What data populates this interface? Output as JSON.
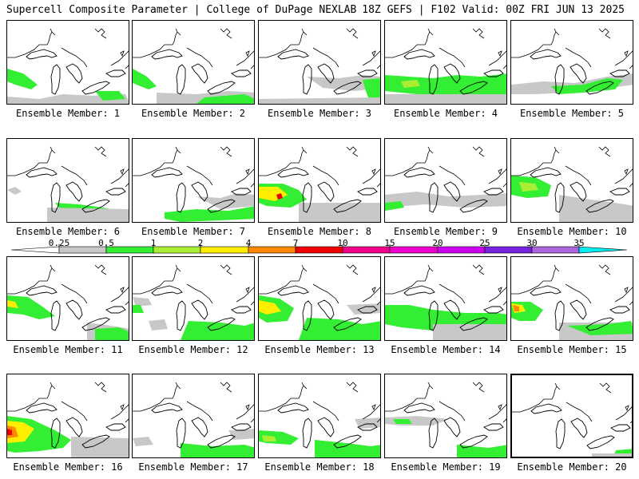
{
  "header": {
    "title": "Supercell Composite Parameter | College of DuPage NEXLAB",
    "run_info": "18Z GEFS | F102 Valid: 00Z FRI JUN 13 2025"
  },
  "members": [
    {
      "label": "Ensemble Member: 1"
    },
    {
      "label": "Ensemble Member: 2"
    },
    {
      "label": "Ensemble Member: 3"
    },
    {
      "label": "Ensemble Member: 4"
    },
    {
      "label": "Ensemble Member: 5"
    },
    {
      "label": "Ensemble Member: 6"
    },
    {
      "label": "Ensemble Member: 7"
    },
    {
      "label": "Ensemble Member: 8"
    },
    {
      "label": "Ensemble Member: 9"
    },
    {
      "label": "Ensemble Member: 10"
    },
    {
      "label": "Ensemble Member: 11"
    },
    {
      "label": "Ensemble Member: 12"
    },
    {
      "label": "Ensemble Member: 13"
    },
    {
      "label": "Ensemble Member: 14"
    },
    {
      "label": "Ensemble Member: 15"
    },
    {
      "label": "Ensemble Member: 16"
    },
    {
      "label": "Ensemble Member: 17"
    },
    {
      "label": "Ensemble Member: 18"
    },
    {
      "label": "Ensemble Member: 19"
    },
    {
      "label": "Ensemble Member: 20"
    }
  ],
  "colorbar": {
    "labels": [
      "0.25",
      "0.5",
      "1",
      "2",
      "4",
      "7",
      "10",
      "15",
      "20",
      "25",
      "30",
      "35"
    ],
    "colors": [
      "#ffffff",
      "#c8c8c8",
      "#33ee33",
      "#aaee33",
      "#ffee00",
      "#ff8800",
      "#ee0000",
      "#ee0088",
      "#ee00cc",
      "#cc00ee",
      "#7722dd",
      "#aa66dd",
      "#00eeee"
    ]
  }
}
